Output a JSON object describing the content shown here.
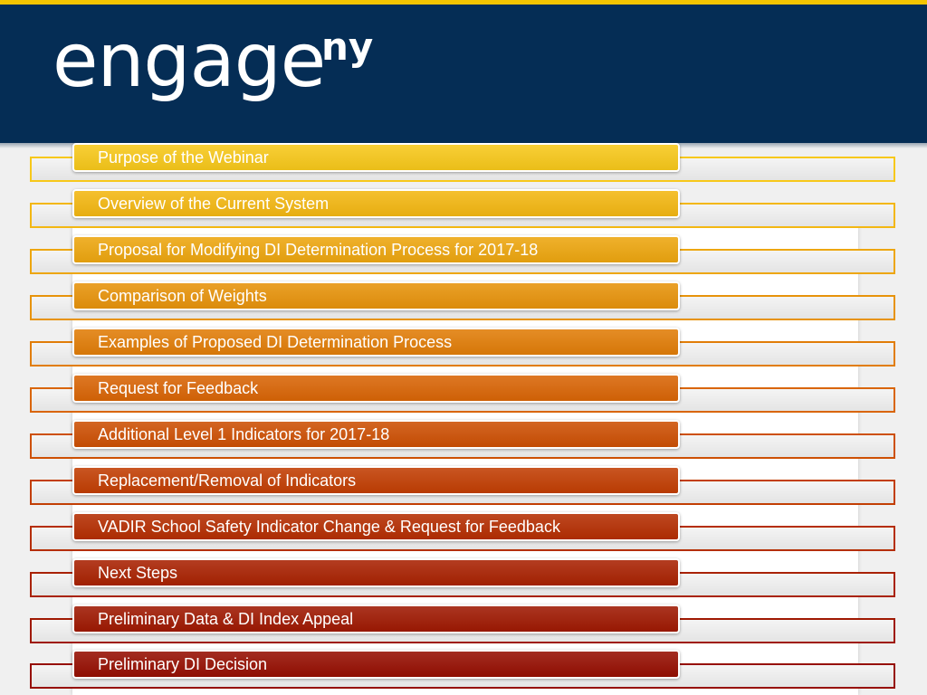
{
  "header": {
    "logo_main": "engage",
    "logo_sup": "ny"
  },
  "colors": {
    "header_bg": "#052d55",
    "top_rule": "#f5c400"
  },
  "agenda": {
    "items": [
      {
        "label": "Purpose of the Webinar",
        "color": "#f7c81a"
      },
      {
        "label": "Overview of the Current System",
        "color": "#f3b712"
      },
      {
        "label": "Proposal for Modifying DI Determination Process for 2017-18",
        "color": "#eda60f"
      },
      {
        "label": "Comparison of Weights",
        "color": "#e7930b"
      },
      {
        "label": "Examples of Proposed DI Determination Process",
        "color": "#e17d08"
      },
      {
        "label": "Request for Feedback",
        "color": "#d96506"
      },
      {
        "label": "Additional Level 1 Indicators for 2017-18",
        "color": "#cd5004"
      },
      {
        "label": "Replacement/Removal of Indicators",
        "color": "#c23e03"
      },
      {
        "label": "VADIR School Safety Indicator Change & Request for Feedback",
        "color": "#b52e02"
      },
      {
        "label": "Next Steps",
        "color": "#a92202"
      },
      {
        "label": "Preliminary Data & DI Index Appeal",
        "color": "#9f1902"
      },
      {
        "label": "Preliminary DI Decision",
        "color": "#960f02"
      }
    ]
  }
}
